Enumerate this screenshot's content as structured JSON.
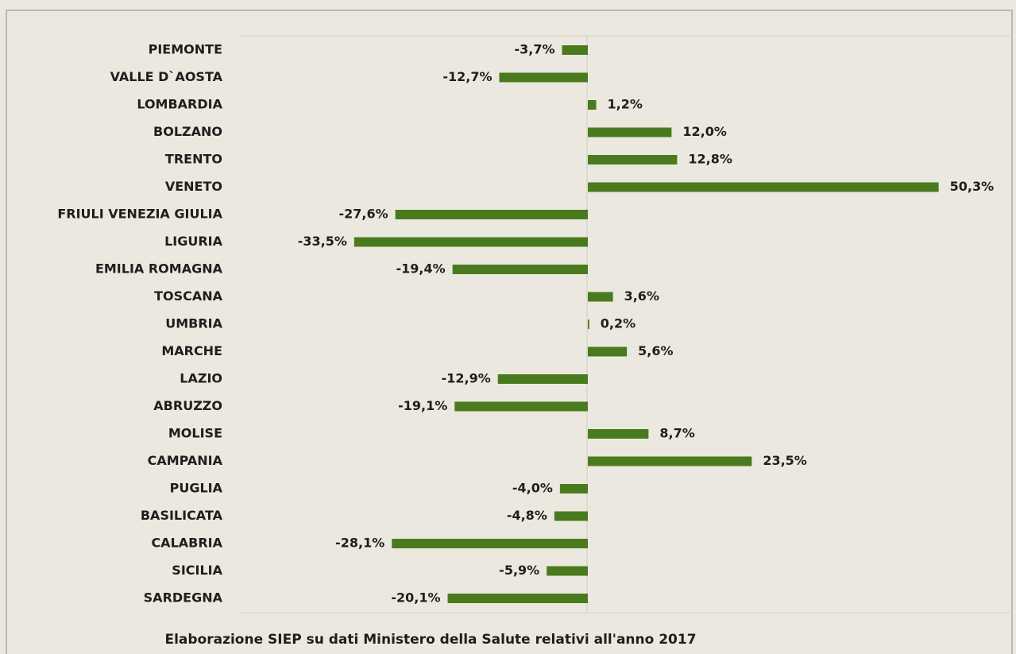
{
  "chart_data": {
    "type": "bar",
    "orientation": "horizontal",
    "categories": [
      "PIEMONTE",
      "VALLE D`AOSTA",
      "LOMBARDIA",
      "BOLZANO",
      "TRENTO",
      "VENETO",
      "FRIULI VENEZIA GIULIA",
      "LIGURIA",
      "EMILIA ROMAGNA",
      "TOSCANA",
      "UMBRIA",
      "MARCHE",
      "LAZIO",
      "ABRUZZO",
      "MOLISE",
      "CAMPANIA",
      "PUGLIA",
      "BASILICATA",
      "CALABRIA",
      "SICILIA",
      "SARDEGNA"
    ],
    "values": [
      -3.7,
      -12.7,
      1.2,
      12.0,
      12.8,
      50.3,
      -27.6,
      -33.5,
      -19.4,
      3.6,
      0.2,
      5.6,
      -12.9,
      -19.1,
      8.7,
      23.5,
      -4.0,
      -4.8,
      -28.1,
      -5.9,
      -20.1
    ],
    "value_labels": [
      "-3,7%",
      "-12,7%",
      "1,2%",
      "12,0%",
      "12,8%",
      "50,3%",
      "-27,6%",
      "-33,5%",
      "-19,4%",
      "3,6%",
      "0,2%",
      "5,6%",
      "-12,9%",
      "-19,1%",
      "8,7%",
      "23,5%",
      "-4,0%",
      "-4,8%",
      "-28,1%",
      "-5,9%",
      "-20,1%"
    ],
    "color": "#4a7a1e",
    "caption": "Elaborazione SIEP su dati Ministero della Salute relativi all'anno 2017"
  }
}
